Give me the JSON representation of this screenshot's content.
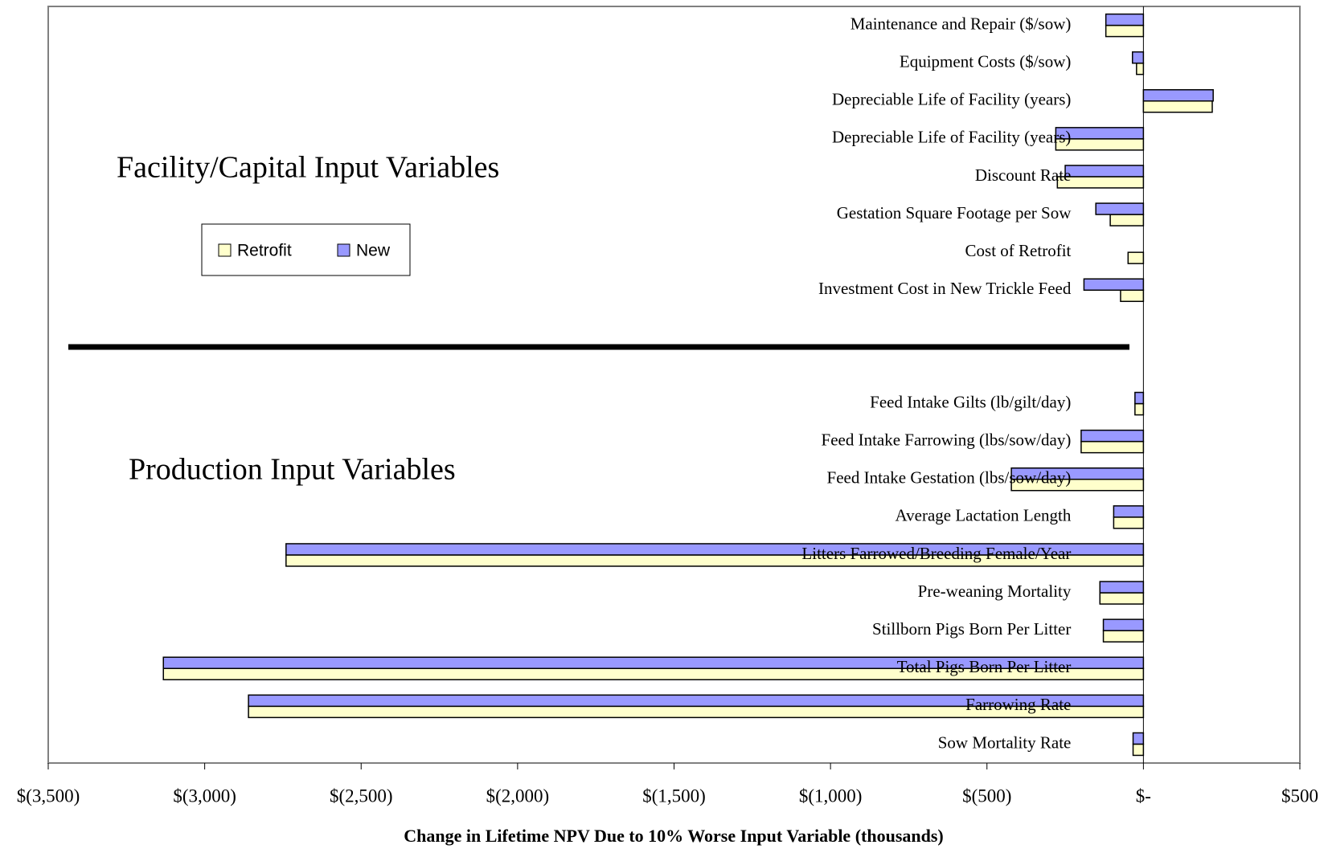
{
  "chart_data": {
    "type": "bar",
    "orientation": "horizontal",
    "x_label": "Change in Lifetime NPV Due to 10% Worse Input Variable (thousands)",
    "annotations": [
      "Facility/Capital Input Variables",
      "Production Input Variables"
    ],
    "categories": [
      "Maintenance and Repair ($/sow)",
      "Equipment Costs ($/sow)",
      "Depreciable Life of Facility (years)",
      "Depreciable Life of Facility (years)",
      "Discount Rate",
      "Gestation Square Footage per Sow",
      "Cost of Retrofit",
      "Investment Cost in New Trickle Feed",
      null,
      null,
      "Feed Intake Gilts (lb/gilt/day)",
      "Feed Intake Farrowing (lbs/sow/day)",
      "Feed Intake Gestation (lbs/sow/day)",
      "Average Lactation Length",
      "Litters Farrowed/Breeding Female/Year",
      "Pre-weaning Mortality",
      "Stillborn Pigs Born Per Litter",
      "Total Pigs Born Per Litter",
      "Farrowing Rate",
      "Sow Mortality Rate"
    ],
    "series": [
      {
        "name": "Retrofit",
        "color": "#ffffcc",
        "values": [
          -120,
          -22,
          220,
          -280,
          -275,
          -106,
          -49,
          -73,
          null,
          null,
          -27,
          -199,
          -422,
          -95,
          -2740,
          -139,
          -128,
          -3132,
          -2860,
          -33
        ]
      },
      {
        "name": "New",
        "color": "#9999ff",
        "values": [
          -120,
          -35,
          223,
          -280,
          -250,
          -152,
          null,
          -190,
          null,
          null,
          -27,
          -199,
          -422,
          -95,
          -2740,
          -139,
          -128,
          -3132,
          -2860,
          -33
        ]
      }
    ],
    "xlim": [
      -3500,
      500
    ],
    "xticks": [
      {
        "value": -3500,
        "label": "$(3,500)"
      },
      {
        "value": -3000,
        "label": "$(3,000)"
      },
      {
        "value": -2500,
        "label": "$(2,500)"
      },
      {
        "value": -2000,
        "label": "$(2,000)"
      },
      {
        "value": -1500,
        "label": "$(1,500)"
      },
      {
        "value": -1000,
        "label": "$(1,000)"
      },
      {
        "value": -500,
        "label": "$(500)"
      },
      {
        "value": 0,
        "label": "$-"
      },
      {
        "value": 500,
        "label": "$500"
      }
    ],
    "legend": "upper left",
    "grid": false
  }
}
